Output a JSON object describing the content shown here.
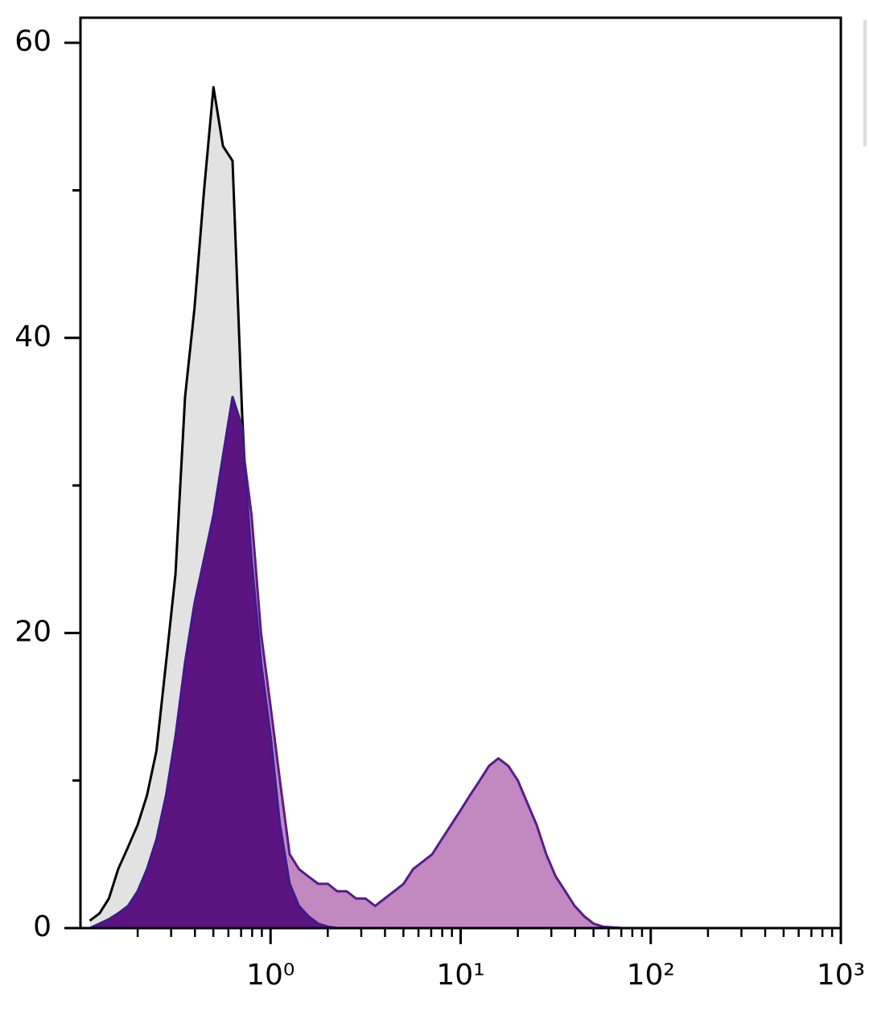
{
  "chart_data": {
    "type": "histogram-overlay",
    "xscale": "log",
    "xlim": [
      0.1,
      1000
    ],
    "ylim": [
      0,
      61.7
    ],
    "xticks": [
      {
        "value": 1,
        "label": "10⁰"
      },
      {
        "value": 10,
        "label": "10¹"
      },
      {
        "value": 100,
        "label": "10²"
      },
      {
        "value": 1000,
        "label": "10³"
      }
    ],
    "xminor_ticks": [
      0.2,
      0.3,
      0.4,
      0.5,
      0.6,
      0.7,
      0.8,
      0.9,
      2,
      3,
      4,
      5,
      6,
      7,
      8,
      9,
      20,
      30,
      40,
      50,
      60,
      70,
      80,
      90,
      200,
      300,
      400,
      500,
      600,
      700,
      800,
      900
    ],
    "yticks": [
      0,
      20,
      40,
      60
    ],
    "yminor_ticks": [
      10,
      30,
      50
    ],
    "x": [
      0.112,
      0.126,
      0.141,
      0.158,
      0.178,
      0.2,
      0.224,
      0.251,
      0.282,
      0.316,
      0.355,
      0.398,
      0.447,
      0.501,
      0.562,
      0.631,
      0.708,
      0.794,
      0.891,
      1,
      1.12,
      1.26,
      1.41,
      1.58,
      1.78,
      2,
      2.24,
      2.51,
      2.82,
      3.16,
      3.55,
      3.98,
      4.47,
      5.01,
      5.62,
      6.31,
      7.08,
      7.94,
      8.91,
      10,
      11.2,
      12.6,
      14.1,
      15.8,
      17.8,
      20,
      22.4,
      25.1,
      28.2,
      31.6,
      35.5,
      39.8,
      44.7,
      50.1,
      56.2,
      63.1,
      70.8
    ],
    "series": [
      {
        "fill": "#e2e2e2",
        "color": "#000000",
        "values": [
          0.5,
          1,
          2,
          4,
          5.5,
          7,
          9,
          12,
          18,
          24,
          36,
          42,
          50,
          57,
          53,
          52,
          35,
          22,
          16,
          10,
          6,
          3,
          1.5,
          0.5,
          0.2,
          0,
          0,
          0,
          0,
          0,
          0,
          0,
          0,
          0,
          0,
          0,
          0,
          0,
          0,
          0,
          0,
          0,
          0,
          0,
          0,
          0,
          0,
          0,
          0,
          0,
          0,
          0,
          0,
          0,
          0,
          0,
          0
        ]
      },
      {
        "fill": "#c189c0",
        "color": "#5b1a8c",
        "values": [
          0,
          0.1,
          0.3,
          0.5,
          1,
          1.5,
          3,
          5,
          8,
          12,
          16,
          20,
          23,
          26,
          30,
          34,
          33,
          28,
          20,
          15,
          10,
          5,
          4,
          3.5,
          3,
          3,
          2.5,
          2.5,
          2,
          2,
          1.5,
          2,
          2.5,
          3,
          4,
          4.5,
          5,
          6,
          7,
          8,
          9,
          10,
          11,
          11.5,
          11,
          10,
          8.5,
          7,
          5,
          3.5,
          2.5,
          1.5,
          0.8,
          0.3,
          0.1,
          0.05,
          0
        ]
      },
      {
        "fill": "#5c1480",
        "color": "#3f1a8c",
        "values": [
          0,
          0.3,
          0.6,
          1,
          1.5,
          2.5,
          4,
          6,
          9,
          13,
          18,
          22,
          25,
          28,
          32,
          36,
          34,
          25,
          18,
          13,
          7,
          3,
          1.5,
          0.8,
          0.3,
          0.1,
          0,
          0,
          0,
          0,
          0,
          0,
          0,
          0,
          0,
          0,
          0,
          0,
          0,
          0,
          0,
          0,
          0,
          0,
          0,
          0,
          0,
          0,
          0,
          0,
          0,
          0,
          0,
          0,
          0,
          0,
          0
        ]
      }
    ]
  }
}
